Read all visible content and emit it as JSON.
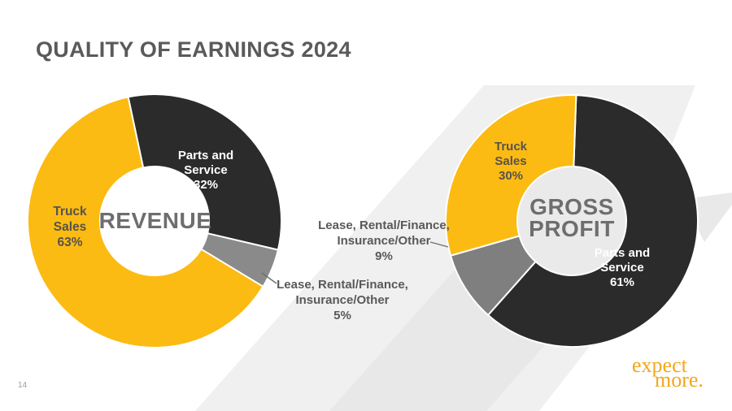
{
  "slide": {
    "title": "QUALITY OF EARNINGS 2024",
    "page_number": "14",
    "logo": {
      "line1": "expect",
      "line2": "more."
    },
    "colors": {
      "slice_yellow": "#FCBB12",
      "slice_dark": "#2B2B2B",
      "slice_gray_revenue": "#8A8A8A",
      "slice_gray_gross": "#7F7F7F",
      "logo_gold": "#F2A71C",
      "title_text": "#595A5C",
      "band_light": "#F0F0F0",
      "band_mid": "#E8E8E8"
    }
  },
  "chart_data": [
    {
      "type": "pie",
      "donut": true,
      "title": "REVENUE",
      "center_label": "REVENUE",
      "units": "%",
      "start_angle_deg": -12,
      "legend_position": "on-slice",
      "slices": [
        {
          "label": "Parts and Service",
          "value": 32,
          "color": "#2B2B2B",
          "annotation": "Parts and\nService\n32%"
        },
        {
          "label": "Lease, Rental/Finance, Insurance/Other",
          "value": 5,
          "color": "#8A8A8A",
          "annotation": "Lease, Rental/Finance,\nInsurance/Other\n5%",
          "label_outside": true
        },
        {
          "label": "Truck Sales",
          "value": 63,
          "color": "#FCBB12",
          "annotation": "Truck\nSales\n63%"
        }
      ]
    },
    {
      "type": "pie",
      "donut": true,
      "title": "GROSS PROFIT",
      "center_label": "GROSS\nPROFIT",
      "units": "%",
      "start_angle_deg": 2,
      "legend_position": "on-slice",
      "slices": [
        {
          "label": "Parts and Service",
          "value": 61,
          "color": "#2B2B2B",
          "annotation": "Parts and\nService\n61%"
        },
        {
          "label": "Lease, Rental/Finance, Insurance/Other",
          "value": 9,
          "color": "#7F7F7F",
          "annotation": "Lease, Rental/Finance,\nInsurance/Other\n9%",
          "label_outside": true
        },
        {
          "label": "Truck Sales",
          "value": 30,
          "color": "#FCBB12",
          "annotation": "Truck\nSales\n30%"
        }
      ]
    }
  ]
}
